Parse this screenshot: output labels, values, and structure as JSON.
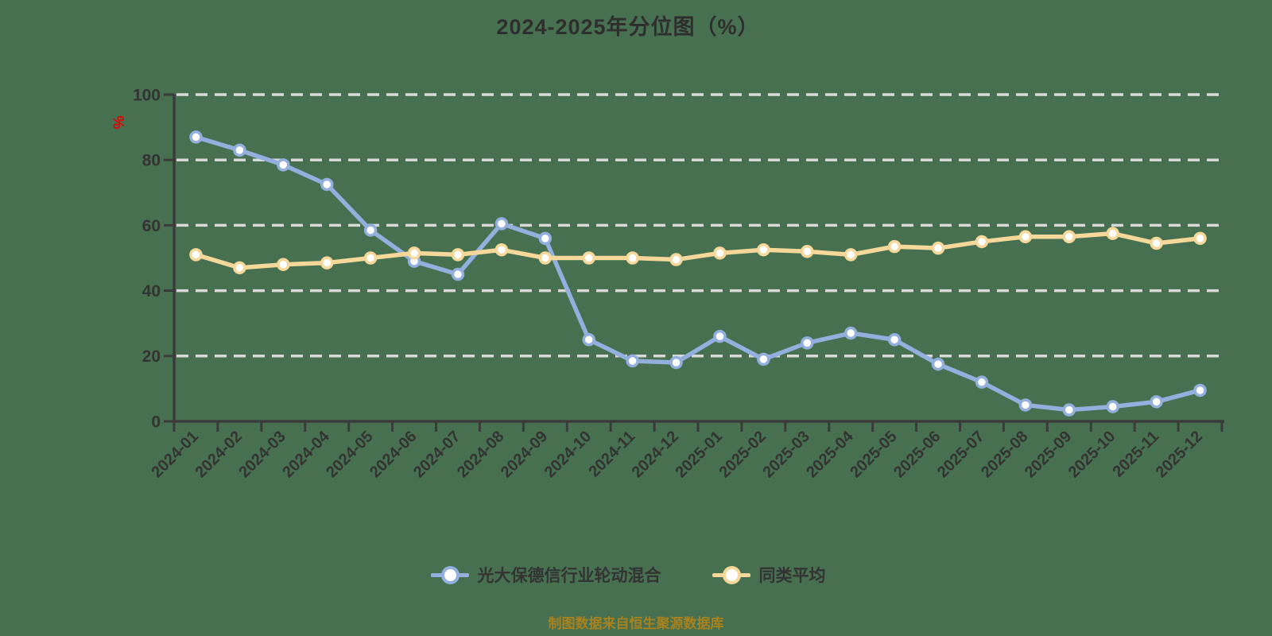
{
  "title": "2024-2025年分位图（%）",
  "y_unit_label": "%",
  "footer": "制图数据来自恒生聚源数据库",
  "colors": {
    "background": "#477050",
    "title_text": "#2e2e2e",
    "axis_line": "#3a3a3a",
    "axis_text": "#333333",
    "gridline": "#d9d9d9",
    "y_unit_label": "#e60000",
    "footer_text": "#a8821e",
    "marker_fill": "#ffffff"
  },
  "legend": {
    "items": [
      {
        "label": "光大保德信行业轮动混合"
      },
      {
        "label": "同类平均"
      }
    ]
  },
  "chart_data": {
    "type": "line",
    "title": "2024-2025年分位图（%）",
    "xlabel": "",
    "ylabel": "%",
    "ylim": [
      0,
      100
    ],
    "yticks": [
      0,
      20,
      40,
      60,
      80,
      100
    ],
    "grid": "horizontal-dashed",
    "legend_position": "bottom",
    "categories": [
      "2024-01",
      "2024-02",
      "2024-03",
      "2024-04",
      "2024-05",
      "2024-06",
      "2024-07",
      "2024-08",
      "2024-09",
      "2024-10",
      "2024-11",
      "2024-12",
      "2025-01",
      "2025-02",
      "2025-03",
      "2025-04",
      "2025-05",
      "2025-06",
      "2025-07",
      "2025-08",
      "2025-09",
      "2025-10",
      "2025-11",
      "2025-12"
    ],
    "series": [
      {
        "name": "光大保德信行业轮动混合",
        "color": "#92afdd",
        "values": [
          87,
          83,
          78.5,
          72.5,
          58.5,
          49,
          45,
          60.5,
          56,
          25,
          18.5,
          18,
          26,
          19,
          24,
          27,
          25,
          17.5,
          12,
          5,
          3.5,
          4.5,
          6,
          9.5
        ]
      },
      {
        "name": "同类平均",
        "color": "#f5d89a",
        "values": [
          51,
          47,
          48,
          48.5,
          50,
          51.5,
          51,
          52.5,
          50,
          50,
          50,
          49.5,
          51.5,
          52.5,
          52,
          51,
          53.5,
          53,
          55,
          56.5,
          56.5,
          57.5,
          54.5,
          56
        ]
      }
    ]
  }
}
